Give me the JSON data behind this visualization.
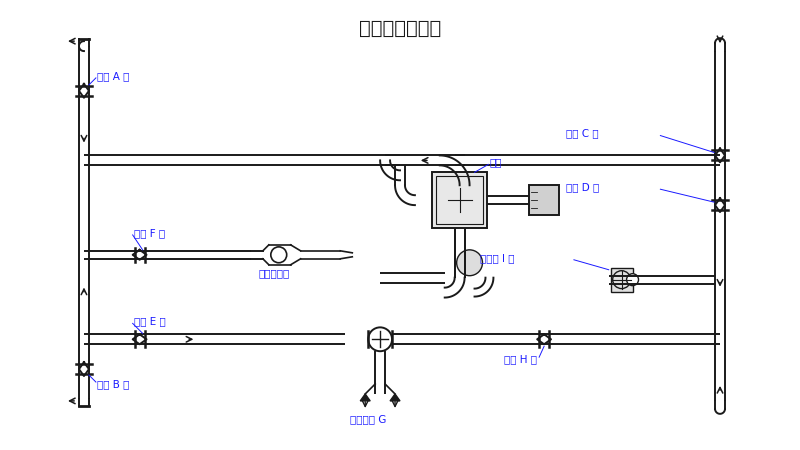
{
  "title": "洒水、浇灌花木",
  "title_fontsize": 14,
  "bg_color": "#ffffff",
  "line_color": "#1a1a1a",
  "label_color": "#1a1aff",
  "labels": {
    "ball_valve_A": "球阀 A 开",
    "ball_valve_B": "球阀 B 开",
    "ball_valve_C": "球阀 C 开",
    "ball_valve_D": "球阀 D 开",
    "ball_valve_E": "球阀 E 开",
    "ball_valve_F": "球阀 F 关",
    "ball_valve_H": "球阀 H 关",
    "three_way_G": "三通球阀 G",
    "fire_hydrant": "消防栓 I 关",
    "water_gun": "洒水炮出口",
    "water_pump": "水泵"
  }
}
